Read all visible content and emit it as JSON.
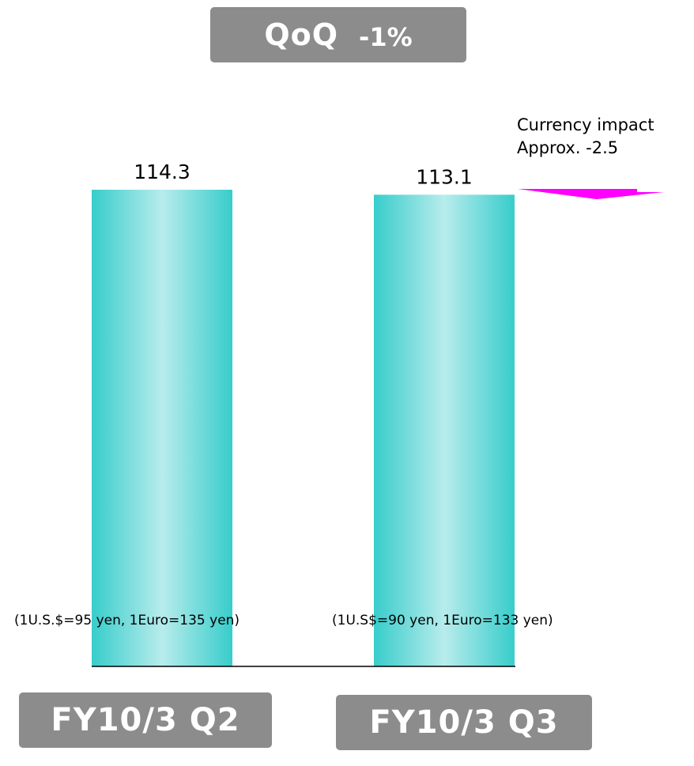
{
  "qoq": {
    "label": "QoQ",
    "change": "-1%"
  },
  "currency_impact": {
    "title": "Currency impact",
    "value": "Approx. -2.5"
  },
  "rates": {
    "q2": "(1U.S.$=95 yen, 1Euro=135 yen)",
    "q3": "(1U.S$=90 yen, 1Euro=133 yen)"
  },
  "colors": {
    "bar_edge": "#37cdcb",
    "bar_center": "#b8ecec",
    "badge": "#8c8c8c",
    "arrow": "#ff00ff"
  },
  "chart_data": {
    "type": "bar",
    "categories": [
      "FY10/3 Q2",
      "FY10/3 Q3"
    ],
    "values": [
      114.3,
      113.1
    ],
    "data_labels": [
      "114.3",
      "113.1"
    ],
    "ylim": [
      0,
      114.3
    ],
    "title": "",
    "xlabel": "",
    "ylabel": "",
    "grid": false
  }
}
